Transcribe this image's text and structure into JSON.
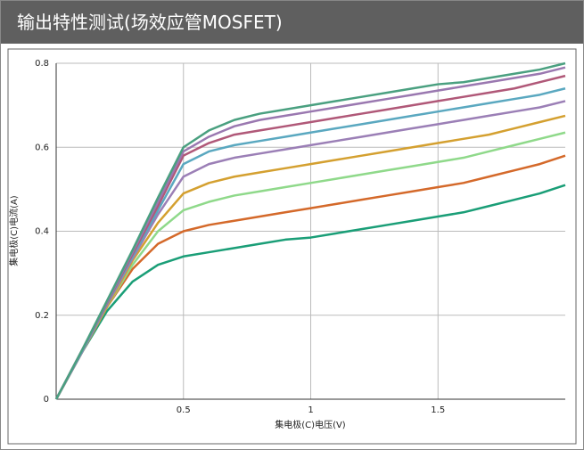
{
  "chart_data": {
    "type": "line",
    "title": "输出特性测试(场效应管MOSFET)",
    "x_label": "集电极(C)电压(V)",
    "y_label": "集电极(C)电流(A)",
    "x": [
      0,
      0.1,
      0.2,
      0.3,
      0.4,
      0.5,
      0.6,
      0.7,
      0.8,
      0.9,
      1.0,
      1.1,
      1.2,
      1.3,
      1.4,
      1.5,
      1.6,
      1.7,
      1.8,
      1.9,
      2.0
    ],
    "series": [
      {
        "color": "#1a9e77",
        "values": [
          0,
          0.11,
          0.21,
          0.28,
          0.32,
          0.34,
          0.35,
          0.36,
          0.37,
          0.38,
          0.385,
          0.395,
          0.405,
          0.415,
          0.425,
          0.435,
          0.445,
          0.46,
          0.475,
          0.49,
          0.51
        ]
      },
      {
        "color": "#d4692a",
        "values": [
          0,
          0.11,
          0.22,
          0.31,
          0.37,
          0.4,
          0.415,
          0.425,
          0.435,
          0.445,
          0.455,
          0.465,
          0.475,
          0.485,
          0.495,
          0.505,
          0.515,
          0.53,
          0.545,
          0.56,
          0.58
        ]
      },
      {
        "color": "#8fd98a",
        "values": [
          0,
          0.11,
          0.22,
          0.32,
          0.4,
          0.45,
          0.47,
          0.485,
          0.495,
          0.505,
          0.515,
          0.525,
          0.535,
          0.545,
          0.555,
          0.565,
          0.575,
          0.59,
          0.605,
          0.62,
          0.635
        ]
      },
      {
        "color": "#d4a030",
        "values": [
          0,
          0.11,
          0.22,
          0.33,
          0.42,
          0.49,
          0.515,
          0.53,
          0.54,
          0.55,
          0.56,
          0.57,
          0.58,
          0.59,
          0.6,
          0.61,
          0.62,
          0.63,
          0.645,
          0.66,
          0.675
        ]
      },
      {
        "color": "#9b7fb6",
        "values": [
          0,
          0.11,
          0.225,
          0.335,
          0.44,
          0.53,
          0.56,
          0.575,
          0.585,
          0.595,
          0.605,
          0.615,
          0.625,
          0.635,
          0.645,
          0.655,
          0.665,
          0.675,
          0.685,
          0.695,
          0.71
        ]
      },
      {
        "color": "#5aa8c0",
        "values": [
          0,
          0.112,
          0.228,
          0.34,
          0.45,
          0.56,
          0.59,
          0.605,
          0.615,
          0.625,
          0.635,
          0.645,
          0.655,
          0.665,
          0.675,
          0.685,
          0.695,
          0.705,
          0.715,
          0.725,
          0.74
        ]
      },
      {
        "color": "#b05878",
        "values": [
          0,
          0.115,
          0.23,
          0.345,
          0.46,
          0.58,
          0.61,
          0.63,
          0.64,
          0.65,
          0.66,
          0.67,
          0.68,
          0.69,
          0.7,
          0.71,
          0.72,
          0.73,
          0.74,
          0.755,
          0.77
        ]
      },
      {
        "color": "#9a78b0",
        "values": [
          0,
          0.115,
          0.232,
          0.35,
          0.47,
          0.59,
          0.625,
          0.65,
          0.665,
          0.675,
          0.685,
          0.695,
          0.705,
          0.715,
          0.725,
          0.735,
          0.745,
          0.755,
          0.765,
          0.775,
          0.79
        ]
      },
      {
        "color": "#4aa080",
        "values": [
          0,
          0.115,
          0.235,
          0.355,
          0.48,
          0.6,
          0.64,
          0.665,
          0.68,
          0.69,
          0.7,
          0.71,
          0.72,
          0.73,
          0.74,
          0.75,
          0.755,
          0.765,
          0.775,
          0.785,
          0.8
        ]
      }
    ],
    "xlim": [
      0,
      2
    ],
    "xticks": [
      0.5,
      1,
      1.5
    ],
    "ylim": [
      0,
      0.8
    ],
    "yticks": [
      0,
      0.2,
      0.4,
      0.6,
      0.8
    ],
    "grid": true
  }
}
